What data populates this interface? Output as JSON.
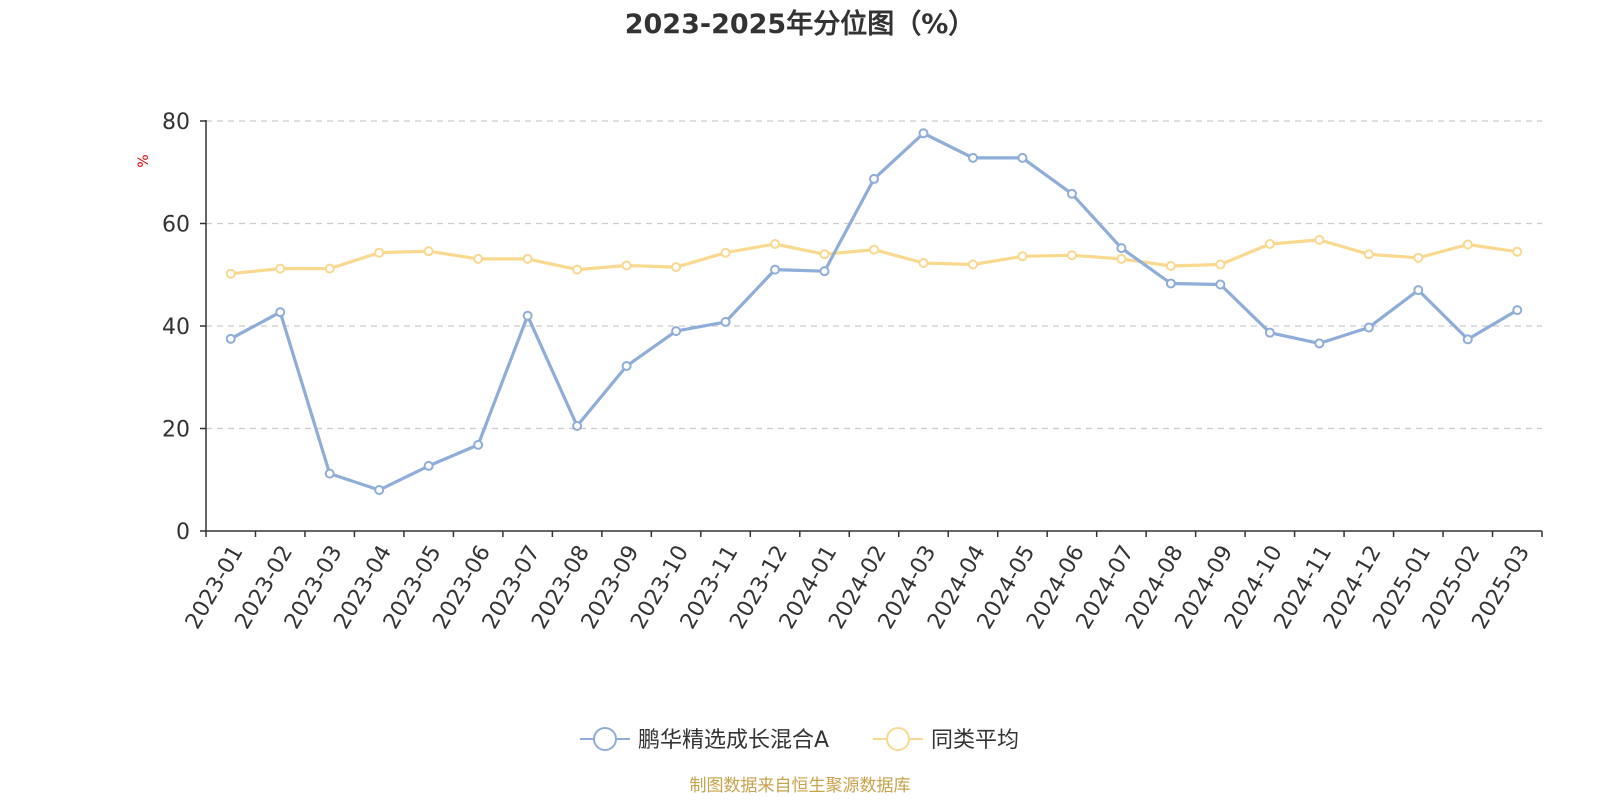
{
  "chart_data": {
    "type": "line",
    "title": "2023-2025年分位图（%）",
    "ylabel": "%",
    "ylim": [
      0,
      80
    ],
    "yticks": [
      0,
      20,
      40,
      60,
      80
    ],
    "grid": true,
    "legend_position": "bottom-center",
    "categories": [
      "2023-01",
      "2023-02",
      "2023-03",
      "2023-04",
      "2023-05",
      "2023-06",
      "2023-07",
      "2023-08",
      "2023-09",
      "2023-10",
      "2023-11",
      "2023-12",
      "2024-01",
      "2024-02",
      "2024-03",
      "2024-04",
      "2024-05",
      "2024-06",
      "2024-07",
      "2024-08",
      "2024-09",
      "2024-10",
      "2024-11",
      "2024-12",
      "2025-01",
      "2025-02",
      "2025-03"
    ],
    "series": [
      {
        "name": "鹏华精选成长混合A",
        "color": "#8eadd8",
        "values": [
          37.5,
          42.7,
          11.2,
          8.0,
          12.7,
          16.8,
          42.0,
          20.5,
          32.2,
          39.0,
          40.8,
          51.0,
          50.7,
          68.7,
          77.6,
          72.8,
          72.8,
          65.8,
          55.2,
          48.3,
          48.1,
          38.7,
          36.6,
          39.7,
          47.0,
          37.4,
          43.1
        ]
      },
      {
        "name": "同类平均",
        "color": "#f9d98f",
        "values": [
          50.2,
          51.2,
          51.2,
          54.3,
          54.6,
          53.1,
          53.1,
          51.0,
          51.8,
          51.5,
          54.3,
          56.0,
          54.0,
          54.9,
          52.3,
          52.0,
          53.6,
          53.8,
          53.1,
          51.7,
          52.0,
          56.0,
          56.8,
          54.0,
          53.3,
          55.9,
          54.5
        ]
      }
    ]
  },
  "footer": {
    "source": "制图数据来自恒生聚源数据库"
  }
}
